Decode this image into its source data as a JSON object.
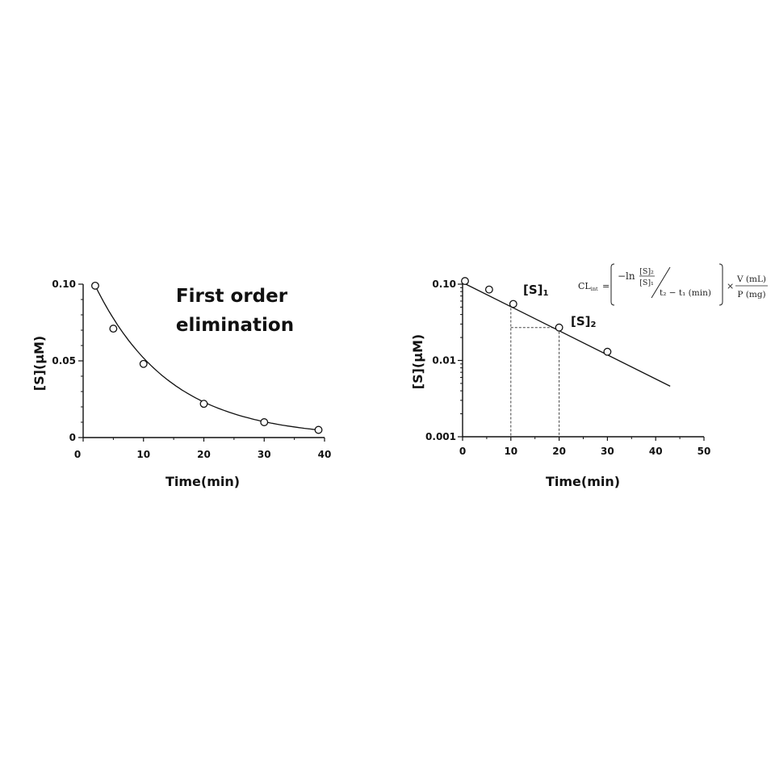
{
  "chart_data": [
    {
      "type": "scatter",
      "title": "First order elimination",
      "xlabel": "Time(min)",
      "ylabel": "[S](μM)",
      "xlim": [
        0,
        40
      ],
      "ylim": [
        0,
        0.1
      ],
      "x_ticks": [
        "0",
        "10",
        "20",
        "30",
        "40"
      ],
      "y_ticks": [
        "0",
        "0.05",
        "0.10"
      ],
      "grid": false,
      "points": {
        "x": [
          2,
          5,
          10,
          20,
          30,
          39
        ],
        "y": [
          0.099,
          0.071,
          0.048,
          0.022,
          0.01,
          0.005
        ]
      },
      "fit": {
        "form": "exponential decay",
        "x_range": [
          2,
          39
        ]
      }
    },
    {
      "type": "scatter",
      "title": "",
      "xlabel": "Time(min)",
      "ylabel": "[S](μM)",
      "xlim": [
        0,
        50
      ],
      "ylim": [
        0.001,
        0.1
      ],
      "y_scale": "log",
      "x_ticks": [
        "0",
        "10",
        "20",
        "30",
        "40",
        "50"
      ],
      "y_ticks": [
        "0.001",
        "0.01",
        "0.10"
      ],
      "grid": false,
      "points": {
        "x": [
          0.5,
          5.5,
          10.5,
          20,
          30
        ],
        "y": [
          0.11,
          0.085,
          0.055,
          0.027,
          0.013
        ]
      },
      "fit": {
        "form": "linear on log scale",
        "x_range": [
          0,
          43
        ],
        "y_range": [
          0.105,
          0.0046
        ]
      },
      "annotations": [
        {
          "text": "[S]",
          "sub": "1",
          "x": 10,
          "y": 0.055
        },
        {
          "text": "[S]",
          "sub": "2",
          "x": 20,
          "y": 0.027
        }
      ],
      "formula": {
        "lhs": "CL",
        "lhs_sub": "int",
        "equals": "=",
        "neg_ln": "−ln",
        "ratio_num": "[S]₂",
        "ratio_den": "[S]₁",
        "time_den": "t₂ − t₁ (min)",
        "times": "×",
        "vol": "V (mL)",
        "prot": "P (mg)"
      }
    }
  ]
}
